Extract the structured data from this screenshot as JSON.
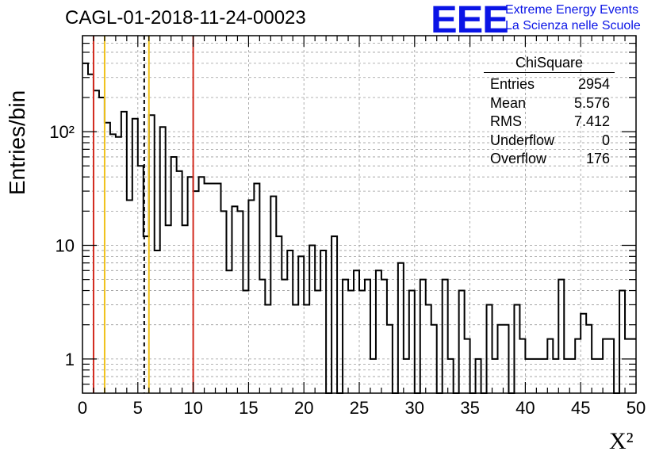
{
  "title": "CAGL-01-2018-11-24-00023",
  "logo": {
    "mark": "EEE",
    "line1": "Extreme Energy Events",
    "line2": "La Scienza nelle Scuole"
  },
  "stats": {
    "name": "ChiSquare",
    "rows": [
      {
        "label": "Entries",
        "value": "2954"
      },
      {
        "label": "Mean",
        "value": "5.576"
      },
      {
        "label": "RMS",
        "value": "7.412"
      },
      {
        "label": "Underflow",
        "value": "0"
      },
      {
        "label": "Overflow",
        "value": "176"
      }
    ]
  },
  "chart_data": {
    "type": "histogram",
    "title": "CAGL-01-2018-11-24-00023",
    "xlabel": "X²",
    "ylabel": "Entries/bin",
    "xlim": [
      0,
      50
    ],
    "ylim": [
      0.5,
      700
    ],
    "yscale": "log",
    "grid": true,
    "bin_width": 0.5,
    "x_ticks": [
      "0",
      "5",
      "10",
      "15",
      "20",
      "25",
      "30",
      "35",
      "40",
      "45",
      "50"
    ],
    "y_ticks": [
      {
        "value": 1,
        "label": "1"
      },
      {
        "value": 10,
        "label": "10"
      },
      {
        "value": 100,
        "label": "10²"
      }
    ],
    "counts": [
      400,
      320,
      230,
      200,
      120,
      95,
      90,
      150,
      25,
      130,
      50,
      12,
      140,
      9,
      110,
      15,
      60,
      45,
      15,
      40,
      30,
      40,
      35,
      35,
      35,
      20,
      6,
      22,
      20,
      4,
      25,
      35,
      5,
      3,
      27,
      12,
      5,
      9,
      3,
      8,
      3,
      10,
      4,
      9,
      0.5,
      12,
      0.5,
      5,
      4,
      6,
      4,
      5,
      1,
      6,
      5,
      2,
      0.5,
      7,
      1,
      4,
      0.5,
      5,
      3,
      2,
      0.5,
      5,
      1,
      0.5,
      4,
      1.5,
      0.5,
      1,
      0.5,
      3,
      1,
      2,
      2,
      0.5,
      3,
      1.5,
      1,
      1,
      1,
      1,
      1.5,
      1,
      5,
      1,
      1,
      1.5,
      2.5,
      2,
      1,
      1,
      1.5,
      1.5,
      0.5,
      4,
      1.5,
      1.5
    ],
    "vertical_lines": [
      {
        "x": 1,
        "color": "#d22a1e",
        "style": "solid"
      },
      {
        "x": 2,
        "color": "#f0c21a",
        "style": "solid"
      },
      {
        "x": 5.576,
        "color": "#000000",
        "style": "dashed"
      },
      {
        "x": 6,
        "color": "#f0c21a",
        "style": "solid"
      },
      {
        "x": 10,
        "color": "#d22a1e",
        "style": "solid"
      }
    ]
  }
}
